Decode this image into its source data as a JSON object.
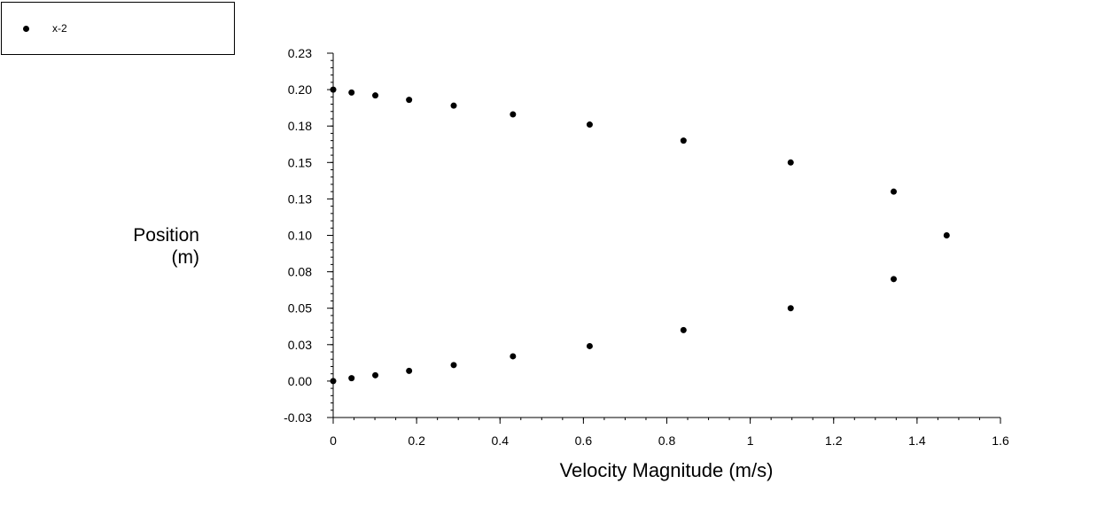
{
  "legend": {
    "label": "x-2"
  },
  "chart_data": {
    "type": "scatter",
    "xlabel": "Velocity Magnitude (m/s)",
    "ylabel_lines": [
      "Position",
      "(m)"
    ],
    "xlim": [
      0,
      1.6
    ],
    "ylim": [
      -0.025,
      0.225
    ],
    "x_ticks": [
      {
        "value": 0,
        "label": "0"
      },
      {
        "value": 0.2,
        "label": "0.2"
      },
      {
        "value": 0.4,
        "label": "0.4"
      },
      {
        "value": 0.6,
        "label": "0.6"
      },
      {
        "value": 0.8,
        "label": "0.8"
      },
      {
        "value": 1.0,
        "label": "1"
      },
      {
        "value": 1.2,
        "label": "1.2"
      },
      {
        "value": 1.4,
        "label": "1.4"
      },
      {
        "value": 1.6,
        "label": "1.6"
      }
    ],
    "y_ticks": [
      {
        "value": -0.025,
        "label": "-0.03"
      },
      {
        "value": 0.0,
        "label": "0.00"
      },
      {
        "value": 0.025,
        "label": "0.03"
      },
      {
        "value": 0.05,
        "label": "0.05"
      },
      {
        "value": 0.075,
        "label": "0.08"
      },
      {
        "value": 0.1,
        "label": "0.10"
      },
      {
        "value": 0.125,
        "label": "0.13"
      },
      {
        "value": 0.15,
        "label": "0.15"
      },
      {
        "value": 0.175,
        "label": "0.18"
      },
      {
        "value": 0.2,
        "label": "0.20"
      },
      {
        "value": 0.225,
        "label": "0.23"
      }
    ],
    "series": [
      {
        "name": "x-2",
        "color": "#000000",
        "points": [
          [
            0.0,
            0.2
          ],
          [
            0.044,
            0.198
          ],
          [
            0.101,
            0.196
          ],
          [
            0.182,
            0.193
          ],
          [
            0.289,
            0.189
          ],
          [
            0.431,
            0.183
          ],
          [
            0.615,
            0.176
          ],
          [
            0.84,
            0.165
          ],
          [
            1.097,
            0.15
          ],
          [
            1.344,
            0.13
          ],
          [
            1.471,
            0.1
          ],
          [
            1.344,
            0.07
          ],
          [
            1.097,
            0.05
          ],
          [
            0.84,
            0.035
          ],
          [
            0.615,
            0.024
          ],
          [
            0.431,
            0.017
          ],
          [
            0.289,
            0.011
          ],
          [
            0.182,
            0.007
          ],
          [
            0.101,
            0.004
          ],
          [
            0.044,
            0.002
          ],
          [
            0.0,
            0.0
          ]
        ]
      }
    ]
  }
}
